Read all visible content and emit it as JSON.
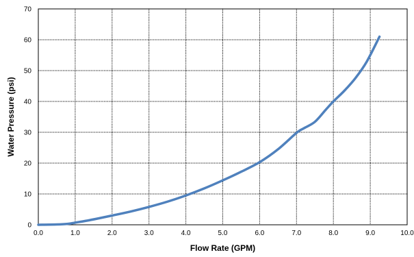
{
  "chart_data": {
    "type": "line",
    "title": "",
    "xlabel": "Flow Rate (GPM)",
    "ylabel": "Water Pressure (psi)",
    "xlim": [
      0,
      10
    ],
    "ylim": [
      0,
      70
    ],
    "xticks": [
      0,
      1,
      2,
      3,
      4,
      5,
      6,
      7,
      8,
      9,
      10
    ],
    "xtick_labels": [
      "0.0",
      "1.0",
      "2.0",
      "3.0",
      "4.0",
      "5.0",
      "6.0",
      "7.0",
      "8.0",
      "9.0",
      "10.0"
    ],
    "yticks": [
      0,
      10,
      20,
      30,
      40,
      50,
      60,
      70
    ],
    "ytick_labels": [
      "0",
      "10",
      "20",
      "30",
      "40",
      "50",
      "60",
      "70"
    ],
    "grid": true,
    "legend": "none",
    "series": [
      {
        "color": "#4f81bd",
        "x": [
          0.0,
          0.5,
          0.8,
          1.0,
          1.3,
          1.6,
          2.0,
          2.5,
          3.0,
          3.5,
          4.0,
          4.5,
          5.0,
          5.5,
          6.0,
          6.5,
          7.0,
          7.2,
          7.5,
          7.8,
          8.0,
          8.3,
          8.6,
          8.9,
          9.25
        ],
        "y": [
          0.0,
          0.1,
          0.3,
          0.7,
          1.3,
          2.0,
          3.0,
          4.3,
          5.8,
          7.5,
          9.5,
          11.8,
          14.4,
          17.2,
          20.3,
          24.5,
          29.8,
          31.3,
          33.4,
          37.4,
          40.0,
          43.5,
          47.6,
          52.8,
          61.0
        ]
      }
    ]
  }
}
